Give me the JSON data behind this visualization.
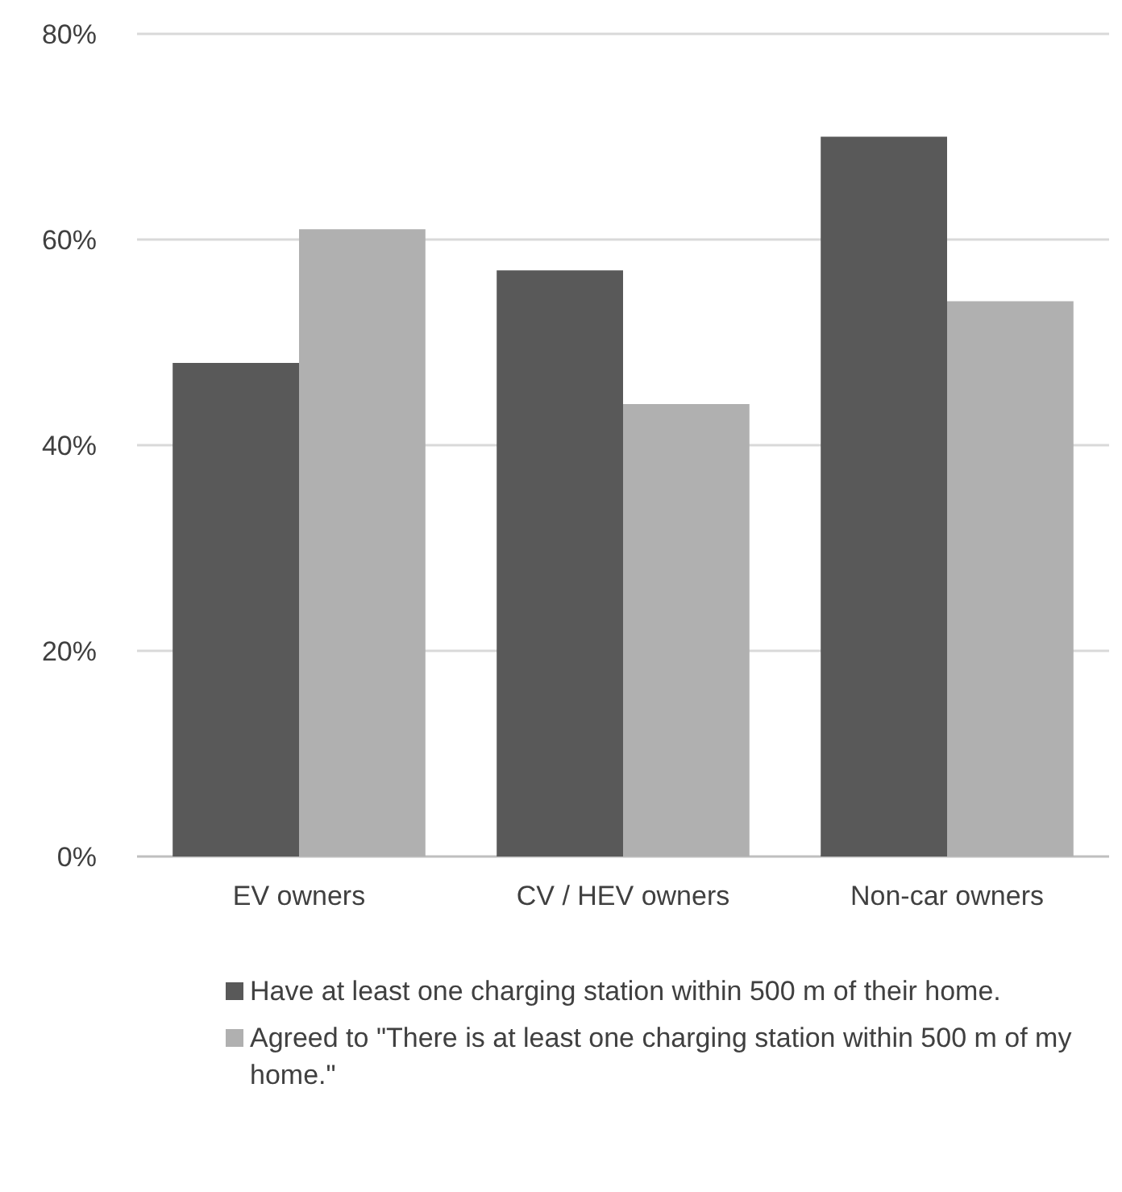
{
  "chart_data": {
    "type": "bar",
    "categories": [
      "EV owners",
      "CV / HEV owners",
      "Non-car owners"
    ],
    "series": [
      {
        "name": "Have at least one charging station within 500 m of their home.",
        "color": "#595959",
        "values": [
          48,
          57,
          70
        ]
      },
      {
        "name": "Agreed to \"There is at least one charging station within 500 m of my home.\"",
        "color": "#b0b0b0",
        "values": [
          61,
          44,
          54
        ]
      }
    ],
    "ylim": [
      0,
      80
    ],
    "yticks": [
      {
        "value": 0,
        "label": "0%"
      },
      {
        "value": 20,
        "label": "20%"
      },
      {
        "value": 40,
        "label": "40%"
      },
      {
        "value": 60,
        "label": "60%"
      },
      {
        "value": 80,
        "label": "80%"
      }
    ],
    "grid": "y",
    "legend": "bottom"
  }
}
